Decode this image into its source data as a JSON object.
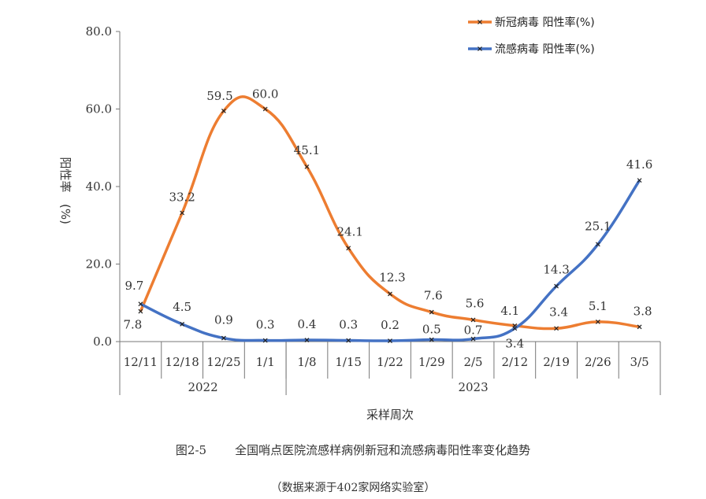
{
  "chart_data": {
    "type": "line",
    "categories": [
      "12/11",
      "12/18",
      "12/25",
      "1/1",
      "1/8",
      "1/15",
      "1/22",
      "1/29",
      "2/5",
      "2/12",
      "2/19",
      "2/26",
      "3/5"
    ],
    "year_groups": [
      {
        "label": "2022",
        "start": 0,
        "end": 3
      },
      {
        "label": "2023",
        "start": 4,
        "end": 12
      }
    ],
    "series": [
      {
        "name": "新冠病毒 阳性率(%)",
        "color": "#ED7D31",
        "values": [
          7.8,
          33.2,
          59.5,
          60.0,
          45.1,
          24.1,
          12.3,
          7.6,
          5.6,
          4.1,
          3.4,
          5.1,
          3.8
        ]
      },
      {
        "name": "流感病毒 阳性率(%)",
        "color": "#4472C4",
        "values": [
          9.7,
          4.5,
          0.9,
          0.3,
          0.4,
          0.3,
          0.2,
          0.5,
          0.7,
          3.4,
          14.3,
          25.1,
          41.6
        ]
      }
    ],
    "ylim": [
      0,
      80
    ],
    "yticks": [
      "0.0",
      "20.0",
      "40.0",
      "60.0",
      "80.0"
    ],
    "ytick_values": [
      0,
      20,
      40,
      60,
      80
    ],
    "ylabel_main": "阳性率",
    "ylabel_unit": "(%)",
    "xlabel": "采样周次",
    "legend_position": "top-right"
  },
  "caption": {
    "figure_number": "图2-5",
    "title": "全国哨点医院流感样病例新冠和流感病毒阳性率变化趋势",
    "source": "（数据来源于402家网络实验室）"
  }
}
